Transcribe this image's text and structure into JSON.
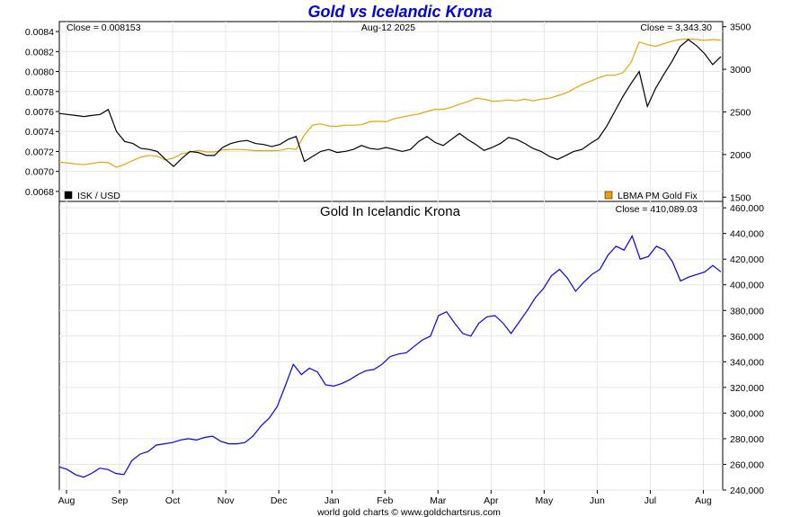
{
  "title": "Gold vs Icelandic Krona",
  "date": "Aug-12  2025",
  "footer": "world gold charts © www.goldchartsrus.com",
  "colors": {
    "title": "#0000ee",
    "isk": "#000000",
    "gold": "#e8a300",
    "krona_gold": "#0000ff",
    "grid": "#e6e6e6"
  },
  "chart_data": [
    {
      "type": "line",
      "panel": "top",
      "close_left": "Close = 0.008153",
      "close_right": "Close = 3,343.30",
      "left_axis": {
        "range": [
          0.0067,
          0.0085
        ],
        "ticks": [
          "0.0068",
          "0.0070",
          "0.0072",
          "0.0074",
          "0.0076",
          "0.0078",
          "0.0080",
          "0.0082",
          "0.0084"
        ]
      },
      "right_axis": {
        "range": [
          1450,
          3560
        ],
        "ticks": [
          "1500",
          "2000",
          "2500",
          "3000",
          "3500"
        ]
      },
      "series": [
        {
          "name": "ISK / USD",
          "axis": "left",
          "values": [
            0.00758,
            0.00757,
            0.00756,
            0.00755,
            0.00756,
            0.00757,
            0.00762,
            0.0074,
            0.0073,
            0.00728,
            0.00723,
            0.00722,
            0.0072,
            0.00712,
            0.00705,
            0.00713,
            0.0072,
            0.00719,
            0.00716,
            0.00716,
            0.00724,
            0.00728,
            0.0073,
            0.00731,
            0.00728,
            0.00727,
            0.00725,
            0.00727,
            0.00732,
            0.00735,
            0.0071,
            0.00715,
            0.0072,
            0.00722,
            0.00719,
            0.0072,
            0.00722,
            0.00726,
            0.00723,
            0.00722,
            0.00724,
            0.00722,
            0.0072,
            0.00722,
            0.0073,
            0.00735,
            0.00729,
            0.00726,
            0.00732,
            0.00738,
            0.00732,
            0.00727,
            0.00721,
            0.00724,
            0.00728,
            0.00734,
            0.00732,
            0.00728,
            0.00723,
            0.0072,
            0.00715,
            0.00712,
            0.00716,
            0.0072,
            0.00722,
            0.00728,
            0.00733,
            0.00745,
            0.0076,
            0.00775,
            0.00788,
            0.008,
            0.00765,
            0.00783,
            0.00797,
            0.0081,
            0.00825,
            0.00832,
            0.00826,
            0.00818,
            0.00807,
            0.00815
          ]
        },
        {
          "name": "LBMA PM Gold Fix",
          "axis": "right",
          "values": [
            1910,
            1900,
            1890,
            1880,
            1895,
            1910,
            1905,
            1850,
            1885,
            1930,
            1970,
            1990,
            1980,
            1935,
            1960,
            2010,
            2025,
            2050,
            2030,
            2030,
            2055,
            2060,
            2060,
            2055,
            2045,
            2045,
            2045,
            2048,
            2070,
            2060,
            2230,
            2345,
            2360,
            2335,
            2330,
            2345,
            2345,
            2350,
            2385,
            2390,
            2385,
            2420,
            2440,
            2460,
            2475,
            2505,
            2530,
            2530,
            2555,
            2590,
            2620,
            2660,
            2650,
            2625,
            2630,
            2640,
            2630,
            2650,
            2630,
            2650,
            2660,
            2690,
            2720,
            2770,
            2820,
            2860,
            2900,
            2930,
            2930,
            2960,
            3080,
            3320,
            3290,
            3270,
            3300,
            3330,
            3350,
            3355,
            3350,
            3340,
            3350,
            3343
          ]
        }
      ]
    },
    {
      "type": "line",
      "panel": "bottom",
      "title": "Gold In Icelandic Krona",
      "close": "Close = 410,089.03",
      "right_axis": {
        "range": [
          240000,
          465000
        ],
        "ticks": [
          "240,000",
          "260,000",
          "280,000",
          "300,000",
          "320,000",
          "340,000",
          "360,000",
          "380,000",
          "400,000",
          "420,000",
          "440,000",
          "460,000"
        ]
      },
      "x_tick_labels": [
        "Aug",
        "Sep",
        "Oct",
        "Nov",
        "Dec",
        "Jan",
        "Feb",
        "Mar",
        "Apr",
        "May",
        "Jun",
        "Jul",
        "Aug"
      ],
      "series": [
        {
          "name": "",
          "values": [
            258000,
            256000,
            252000,
            250000,
            253000,
            257000,
            256000,
            253000,
            252000,
            263000,
            268000,
            270000,
            275000,
            276000,
            277000,
            279000,
            280000,
            279000,
            281000,
            282000,
            278000,
            276000,
            276000,
            277000,
            282000,
            290000,
            296000,
            305000,
            321000,
            338000,
            330000,
            335000,
            332000,
            322000,
            321000,
            323000,
            326000,
            330000,
            333000,
            334000,
            338000,
            344000,
            346000,
            347000,
            352000,
            357000,
            360000,
            376000,
            379000,
            370000,
            362000,
            360000,
            370000,
            375000,
            376000,
            370000,
            362000,
            371000,
            380000,
            390000,
            397000,
            407000,
            412000,
            405000,
            395000,
            402000,
            408000,
            412000,
            423000,
            430000,
            427000,
            438000,
            420000,
            422000,
            430000,
            427000,
            418000,
            403000,
            406000,
            408000,
            410000,
            415000,
            410089
          ]
        }
      ]
    }
  ]
}
